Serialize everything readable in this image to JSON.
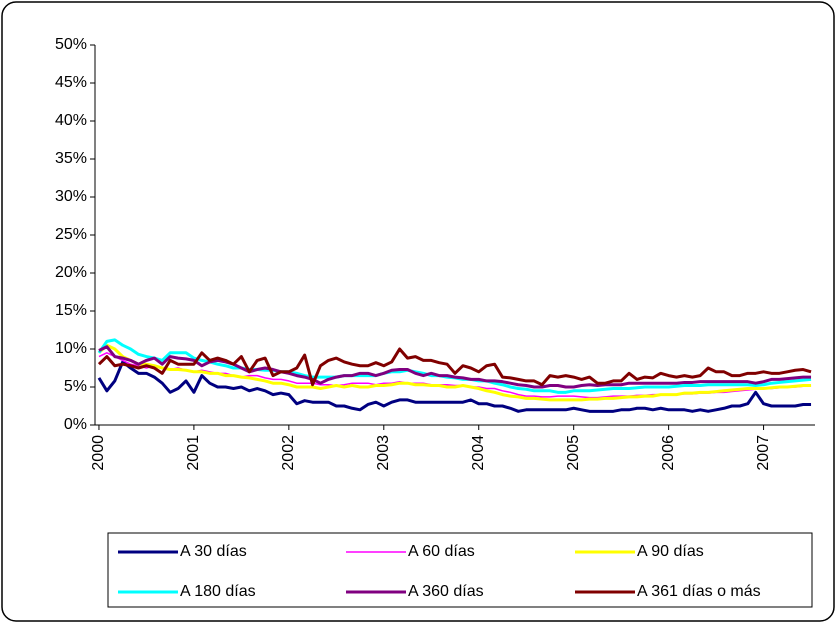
{
  "chart_data": {
    "type": "line",
    "categories": [
      "2000",
      null,
      null,
      null,
      null,
      null,
      null,
      null,
      null,
      null,
      null,
      null,
      "2001",
      null,
      null,
      null,
      null,
      null,
      null,
      null,
      null,
      null,
      null,
      null,
      "2002",
      null,
      null,
      null,
      null,
      null,
      null,
      null,
      null,
      null,
      null,
      null,
      "2003",
      null,
      null,
      null,
      null,
      null,
      null,
      null,
      null,
      null,
      null,
      null,
      "2004",
      null,
      null,
      null,
      null,
      null,
      null,
      null,
      null,
      null,
      null,
      null,
      "2005",
      null,
      null,
      null,
      null,
      null,
      null,
      null,
      null,
      null,
      null,
      null,
      "2006",
      null,
      null,
      null,
      null,
      null,
      null,
      null,
      null,
      null,
      null,
      null,
      "2007",
      null,
      null,
      null,
      null,
      null,
      null
    ],
    "ylim": [
      0,
      50
    ],
    "yticks": [
      {
        "value": 0,
        "label": "0%"
      },
      {
        "value": 5,
        "label": "5%"
      },
      {
        "value": 10,
        "label": "10%"
      },
      {
        "value": 15,
        "label": "15%"
      },
      {
        "value": 20,
        "label": "20%"
      },
      {
        "value": 25,
        "label": "25%"
      },
      {
        "value": 30,
        "label": "30%"
      },
      {
        "value": 35,
        "label": "35%"
      },
      {
        "value": 40,
        "label": "40%"
      },
      {
        "value": 45,
        "label": "45%"
      },
      {
        "value": 50,
        "label": "50%"
      }
    ],
    "series": [
      {
        "name": "A 30 días",
        "color": "#000080",
        "values": [
          6.2,
          4.5,
          5.8,
          8.3,
          7.5,
          6.8,
          6.8,
          6.3,
          5.5,
          4.3,
          4.8,
          5.8,
          4.3,
          6.5,
          5.5,
          5.0,
          5.0,
          4.8,
          5.0,
          4.5,
          4.8,
          4.5,
          4.0,
          4.2,
          4.0,
          2.8,
          3.2,
          3.0,
          3.0,
          3.0,
          2.5,
          2.5,
          2.2,
          2.0,
          2.7,
          3.0,
          2.5,
          3.0,
          3.3,
          3.3,
          3.0,
          3.0,
          3.0,
          3.0,
          3.0,
          3.0,
          3.0,
          3.3,
          2.8,
          2.8,
          2.5,
          2.5,
          2.2,
          1.8,
          2.0,
          2.0,
          2.0,
          2.0,
          2.0,
          2.0,
          2.2,
          2.0,
          1.8,
          1.8,
          1.8,
          1.8,
          2.0,
          2.0,
          2.2,
          2.2,
          2.0,
          2.2,
          2.0,
          2.0,
          2.0,
          1.8,
          2.0,
          1.8,
          2.0,
          2.2,
          2.5,
          2.5,
          2.8,
          4.3,
          2.8,
          2.5,
          2.5,
          2.5,
          2.5,
          2.7,
          2.7
        ]
      },
      {
        "name": "A 60 días",
        "color": "#ff00ff",
        "values": [
          9.0,
          9.5,
          9.0,
          8.5,
          8.0,
          7.8,
          7.5,
          7.8,
          7.5,
          7.3,
          7.5,
          7.2,
          7.0,
          7.2,
          7.0,
          6.8,
          6.8,
          6.5,
          6.3,
          6.5,
          6.5,
          6.2,
          6.0,
          6.0,
          5.8,
          5.5,
          5.5,
          5.5,
          5.3,
          5.3,
          5.2,
          5.3,
          5.5,
          5.5,
          5.5,
          5.3,
          5.5,
          5.5,
          5.7,
          5.5,
          5.5,
          5.5,
          5.3,
          5.3,
          5.3,
          5.2,
          5.2,
          5.0,
          5.0,
          4.8,
          4.8,
          4.5,
          4.3,
          4.0,
          3.8,
          3.8,
          3.7,
          3.7,
          3.8,
          3.8,
          3.8,
          3.7,
          3.6,
          3.6,
          3.7,
          3.8,
          3.8,
          3.8,
          3.9,
          3.9,
          4.0,
          4.0,
          4.0,
          4.0,
          4.1,
          4.1,
          4.2,
          4.2,
          4.3,
          4.3,
          4.4,
          4.5,
          4.6,
          4.7,
          4.8,
          4.8,
          4.9,
          5.0,
          5.0,
          5.1,
          5.1
        ]
      },
      {
        "name": "A 90 días",
        "color": "#ffff00",
        "values": [
          9.5,
          10.5,
          10.0,
          9.0,
          8.5,
          8.0,
          8.0,
          7.8,
          7.5,
          7.3,
          7.3,
          7.2,
          7.0,
          7.0,
          6.8,
          6.8,
          6.5,
          6.5,
          6.3,
          6.2,
          6.0,
          5.8,
          5.5,
          5.5,
          5.3,
          5.0,
          5.0,
          5.0,
          4.8,
          5.0,
          5.2,
          5.0,
          5.2,
          5.0,
          5.0,
          5.2,
          5.2,
          5.3,
          5.5,
          5.5,
          5.3,
          5.3,
          5.2,
          5.2,
          5.0,
          5.0,
          5.2,
          5.0,
          4.8,
          4.5,
          4.3,
          4.0,
          3.8,
          3.7,
          3.5,
          3.5,
          3.4,
          3.3,
          3.3,
          3.3,
          3.3,
          3.3,
          3.4,
          3.4,
          3.5,
          3.5,
          3.6,
          3.7,
          3.7,
          3.8,
          3.8,
          4.0,
          4.0,
          4.0,
          4.2,
          4.2,
          4.3,
          4.3,
          4.4,
          4.5,
          4.6,
          4.7,
          4.8,
          4.8,
          4.8,
          4.9,
          5.0,
          5.0,
          5.1,
          5.2,
          5.2
        ]
      },
      {
        "name": "A 180 días",
        "color": "#00ffff",
        "values": [
          9.5,
          11.0,
          11.2,
          10.5,
          10.0,
          9.3,
          9.0,
          8.8,
          8.5,
          9.5,
          9.5,
          9.5,
          8.8,
          8.5,
          8.3,
          8.0,
          7.8,
          7.5,
          7.5,
          7.3,
          7.3,
          7.2,
          7.2,
          7.0,
          7.0,
          6.8,
          6.5,
          6.3,
          6.3,
          6.3,
          6.3,
          6.5,
          6.5,
          6.5,
          6.5,
          6.5,
          6.8,
          7.0,
          7.0,
          7.2,
          7.0,
          6.8,
          6.5,
          6.5,
          6.3,
          6.2,
          6.0,
          6.0,
          5.8,
          5.8,
          5.5,
          5.3,
          5.0,
          4.8,
          4.7,
          4.5,
          4.5,
          4.5,
          4.3,
          4.3,
          4.5,
          4.5,
          4.5,
          4.6,
          4.7,
          4.8,
          4.8,
          4.8,
          4.9,
          5.0,
          5.0,
          5.0,
          5.0,
          5.1,
          5.2,
          5.2,
          5.2,
          5.3,
          5.3,
          5.3,
          5.3,
          5.3,
          5.3,
          5.2,
          5.3,
          5.5,
          5.6,
          5.7,
          5.8,
          5.9,
          6.0
        ]
      },
      {
        "name": "A 360 días",
        "color": "#800080",
        "values": [
          9.8,
          10.3,
          9.0,
          8.8,
          8.5,
          8.0,
          8.5,
          8.8,
          8.0,
          9.0,
          8.8,
          8.7,
          8.5,
          7.8,
          8.3,
          8.5,
          8.3,
          8.0,
          7.5,
          7.0,
          7.3,
          7.5,
          7.3,
          7.0,
          6.8,
          6.5,
          6.3,
          6.0,
          5.5,
          6.0,
          6.3,
          6.5,
          6.5,
          6.8,
          6.8,
          6.5,
          6.8,
          7.2,
          7.3,
          7.3,
          6.8,
          6.5,
          6.8,
          6.5,
          6.5,
          6.3,
          6.2,
          6.0,
          6.0,
          5.8,
          5.8,
          5.7,
          5.5,
          5.3,
          5.2,
          5.0,
          5.0,
          5.2,
          5.2,
          5.0,
          5.0,
          5.2,
          5.3,
          5.2,
          5.3,
          5.3,
          5.3,
          5.5,
          5.5,
          5.5,
          5.5,
          5.5,
          5.5,
          5.5,
          5.6,
          5.6,
          5.7,
          5.7,
          5.7,
          5.7,
          5.7,
          5.7,
          5.7,
          5.5,
          5.7,
          6.0,
          6.0,
          6.1,
          6.2,
          6.3,
          6.3
        ]
      },
      {
        "name": "A 361 días o más",
        "color": "#800000",
        "values": [
          8.0,
          9.0,
          7.8,
          8.0,
          7.8,
          7.5,
          7.8,
          7.5,
          6.8,
          8.5,
          8.0,
          8.0,
          8.0,
          9.5,
          8.5,
          8.8,
          8.5,
          8.0,
          9.0,
          7.0,
          8.5,
          8.8,
          6.5,
          7.0,
          7.0,
          7.5,
          9.2,
          5.3,
          7.8,
          8.5,
          8.8,
          8.3,
          8.0,
          7.8,
          7.8,
          8.2,
          7.8,
          8.3,
          10.0,
          8.8,
          9.0,
          8.5,
          8.5,
          8.2,
          8.0,
          6.8,
          7.8,
          7.5,
          7.0,
          7.8,
          8.0,
          6.3,
          6.2,
          6.0,
          5.8,
          5.8,
          5.3,
          6.5,
          6.3,
          6.5,
          6.3,
          6.0,
          6.3,
          5.5,
          5.5,
          5.8,
          5.8,
          6.8,
          6.0,
          6.3,
          6.2,
          6.8,
          6.5,
          6.3,
          6.5,
          6.3,
          6.5,
          7.5,
          7.0,
          7.0,
          6.5,
          6.5,
          6.8,
          6.8,
          7.0,
          6.8,
          6.8,
          7.0,
          7.2,
          7.3,
          7.0
        ]
      }
    ]
  }
}
